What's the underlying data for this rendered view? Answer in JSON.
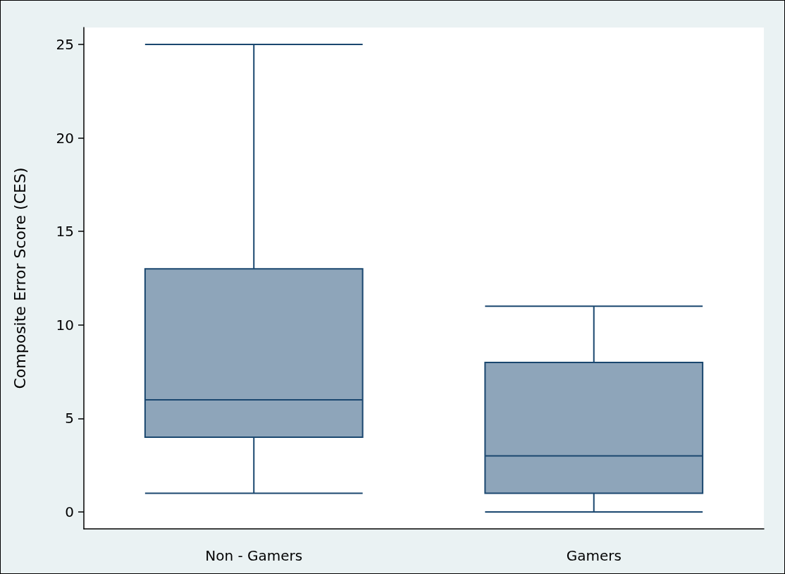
{
  "chart_data": {
    "type": "box",
    "ylabel": "Composite Error Score (CES)",
    "categories": [
      "Non - Gamers",
      "Gamers"
    ],
    "series": [
      {
        "color": "#8ea5ba",
        "boxes": [
          {
            "low": 1,
            "q1": 4,
            "median": 6,
            "q3": 13,
            "high": 25
          },
          {
            "low": 0,
            "q1": 1,
            "median": 3,
            "q3": 8,
            "high": 11
          }
        ]
      }
    ],
    "ylim": [
      -0.9,
      25.9
    ],
    "yticks": [
      0,
      5,
      10,
      15,
      20,
      25
    ]
  }
}
